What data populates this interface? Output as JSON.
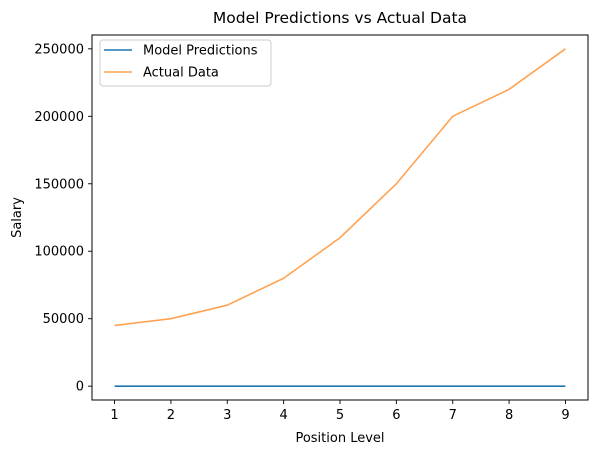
{
  "chart_data": {
    "type": "line",
    "title": "Model Predictions vs Actual Data",
    "xlabel": "Position Level",
    "ylabel": "Salary",
    "x": [
      1,
      2,
      3,
      4,
      5,
      6,
      7,
      8,
      9
    ],
    "xlim": [
      0.6,
      9.4
    ],
    "ylim": [
      -10250,
      260250
    ],
    "xticks": [
      1,
      2,
      3,
      4,
      5,
      6,
      7,
      8,
      9
    ],
    "yticks": [
      0,
      50000,
      100000,
      150000,
      200000,
      250000
    ],
    "grid": false,
    "legend_position": "top-left",
    "series": [
      {
        "name": "Model Predictions",
        "color": "#1f77b4",
        "values": [
          0,
          0,
          0,
          0,
          0,
          0,
          0,
          0,
          0
        ]
      },
      {
        "name": "Actual Data",
        "color": "#ffa352",
        "values": [
          45000,
          50000,
          60000,
          80000,
          110000,
          150000,
          200000,
          220000,
          250000
        ]
      }
    ]
  }
}
